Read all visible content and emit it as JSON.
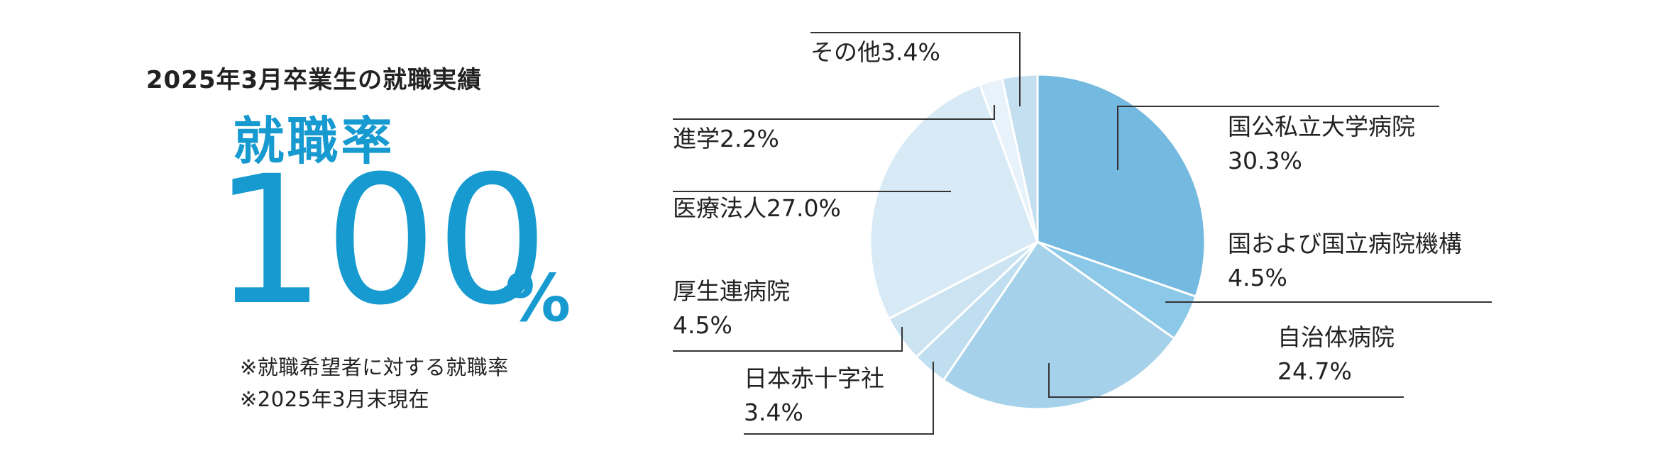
{
  "headline": "2025年3月卒業生の就職実績",
  "rate_title": "就職率",
  "rate_value": "100",
  "rate_unit": "%",
  "notes": [
    "※就職希望者に対する就職率",
    "※2025年3月末現在"
  ],
  "colors": {
    "accent": "#169ad0",
    "line": "#333333"
  },
  "chart_data": {
    "type": "pie",
    "slices": [
      {
        "name": "国公私立大学病院",
        "value": 30.3,
        "value_label": "30.3%",
        "color": "#74b9df"
      },
      {
        "name": "国および国立病院機構",
        "value": 4.5,
        "value_label": "4.5%",
        "color": "#8cc8e7"
      },
      {
        "name": "自治体病院",
        "value": 24.7,
        "value_label": "24.7%",
        "color": "#a5d2ea"
      },
      {
        "name": "日本赤十字社",
        "value": 3.4,
        "value_label": "3.4%",
        "color": "#bfdeef"
      },
      {
        "name": "厚生連病院",
        "value": 4.5,
        "value_label": "4.5%",
        "color": "#cce3f1"
      },
      {
        "name": "医療法人",
        "value": 27.0,
        "value_label": "27.0%",
        "color": "#d8eaf6"
      },
      {
        "name": "進学",
        "value": 2.2,
        "value_label": "2.2%",
        "color": "#e8f2fa"
      },
      {
        "name": "その他",
        "value": 3.4,
        "value_label": "3.4%",
        "color": "#c4dff0"
      }
    ],
    "title": "",
    "legend": "none"
  }
}
